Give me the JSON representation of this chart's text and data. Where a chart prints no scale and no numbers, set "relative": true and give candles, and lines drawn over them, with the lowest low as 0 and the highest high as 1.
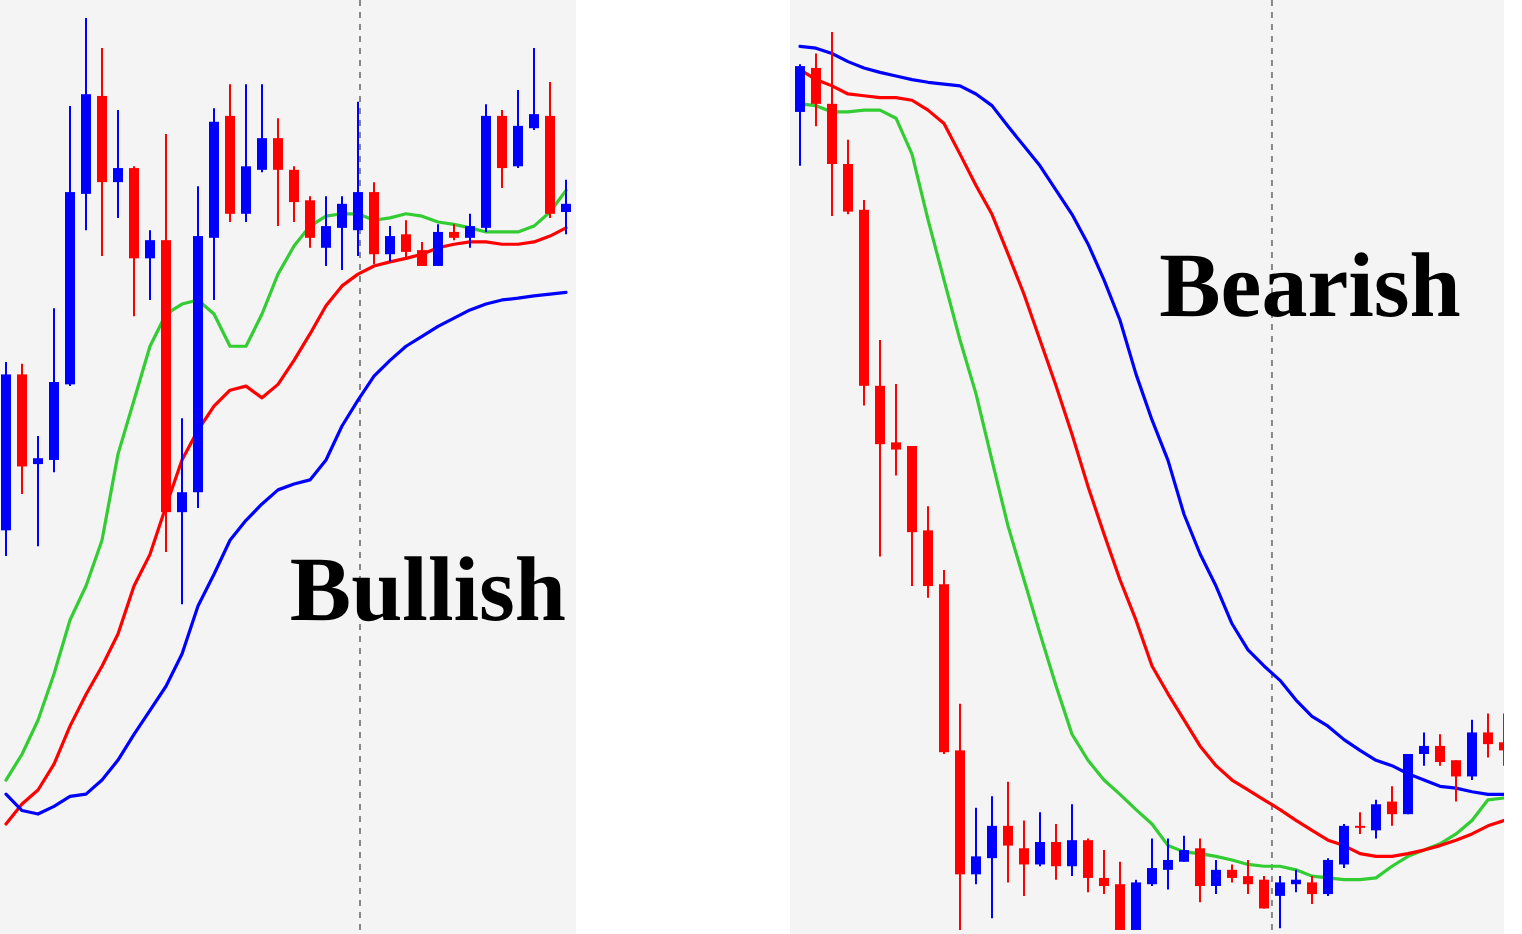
{
  "chart_data": [
    {
      "type": "candlestick",
      "relative": true,
      "annotations": [
        "Bullish"
      ],
      "categories": [
        null,
        null,
        null,
        null,
        null,
        null,
        null,
        null,
        null,
        null,
        null,
        null,
        null,
        null,
        null,
        null,
        null,
        null,
        null,
        null,
        null,
        null,
        null,
        null,
        null,
        null,
        null,
        null,
        null,
        null,
        null,
        null,
        null,
        null,
        null,
        null
      ],
      "ohlc": [
        [
          0.126,
          0.413,
          0.082,
          0.392
        ],
        [
          0.392,
          0.41,
          0.188,
          0.235
        ],
        [
          0.239,
          0.287,
          0.099,
          0.249
        ],
        [
          0.246,
          0.505,
          0.225,
          0.379
        ],
        [
          0.375,
          0.85,
          0.372,
          0.703
        ],
        [
          0.7,
          1.0,
          0.638,
          0.87
        ],
        [
          0.867,
          0.949,
          0.594,
          0.72
        ],
        [
          0.72,
          0.843,
          0.659,
          0.744
        ],
        [
          0.744,
          0.747,
          0.491,
          0.59
        ],
        [
          0.59,
          0.638,
          0.519,
          0.621
        ],
        [
          0.621,
          0.802,
          0.089,
          0.157
        ],
        [
          0.157,
          0.317,
          0,
          0.191
        ],
        [
          0.191,
          0.713,
          0.164,
          0.628
        ],
        [
          0.625,
          0.846,
          0.519,
          0.823
        ],
        [
          0.833,
          0.887,
          0.652,
          0.666
        ],
        [
          0.666,
          0.887,
          0.652,
          0.747
        ],
        [
          0.741,
          0.887,
          0.737,
          0.795
        ],
        [
          0.795,
          0.829,
          0.645,
          0.741
        ],
        [
          0.741,
          0.747,
          0.652,
          0.686
        ],
        [
          0.689,
          0.696,
          0.608,
          0.625
        ],
        [
          0.608,
          0.696,
          0.577,
          0.645
        ],
        [
          0.642,
          0.696,
          0.57,
          0.683
        ],
        [
          0.638,
          0.857,
          0.594,
          0.703
        ],
        [
          0.703,
          0.72,
          0.58,
          0.597
        ],
        [
          0.597,
          0.645,
          0.584,
          0.628
        ],
        [
          0.631,
          0.655,
          0.587,
          0.601
        ],
        [
          0.604,
          0.618,
          0.577,
          0.577
        ],
        [
          0.577,
          0.648,
          0.577,
          0.635
        ],
        [
          0.635,
          0.648,
          0.621,
          0.625
        ],
        [
          0.625,
          0.666,
          0.608,
          0.645
        ],
        [
          0.642,
          0.853,
          0.635,
          0.833
        ],
        [
          0.833,
          0.843,
          0.71,
          0.744
        ],
        [
          0.747,
          0.877,
          0.744,
          0.816
        ],
        [
          0.812,
          0.949,
          0.809,
          0.836
        ],
        [
          0.833,
          0.891,
          0.659,
          0.666
        ],
        [
          0.669,
          0.724,
          0.631,
          0.683
        ]
      ],
      "colors": [
        "#0000ff",
        "#ff0000",
        "#0000ff",
        "#0000ff",
        "#0000ff",
        "#0000ff",
        "#ff0000",
        "#0000ff",
        "#ff0000",
        "#0000ff",
        "#ff0000",
        "#0000ff",
        "#0000ff",
        "#0000ff",
        "#ff0000",
        "#0000ff",
        "#0000ff",
        "#ff0000",
        "#ff0000",
        "#ff0000",
        "#0000ff",
        "#0000ff",
        "#0000ff",
        "#ff0000",
        "#0000ff",
        "#ff0000",
        "#ff0000",
        "#0000ff",
        "#ff0000",
        "#0000ff",
        "#0000ff",
        "#ff0000",
        "#0000ff",
        "#0000ff",
        "#ff0000",
        "#0000ff"
      ],
      "series": [
        {
          "type": "line",
          "color": "#33cc33",
          "values": [
            -0.3,
            -0.256,
            -0.198,
            -0.119,
            -0.027,
            0.031,
            0.109,
            0.256,
            0.348,
            0.44,
            0.495,
            0.512,
            0.519,
            0.495,
            0.44,
            0.44,
            0.495,
            0.563,
            0.611,
            0.645,
            0.662,
            0.666,
            0.666,
            0.655,
            0.659,
            0.666,
            0.662,
            0.652,
            0.648,
            0.642,
            0.635,
            0.635,
            0.635,
            0.645,
            0.669,
            0.706
          ]
        },
        {
          "type": "line",
          "color": "#ff0000",
          "values": [
            -0.375,
            -0.341,
            -0.317,
            -0.273,
            -0.208,
            -0.154,
            -0.106,
            -0.051,
            0.031,
            0.085,
            0.167,
            0.246,
            0.297,
            0.338,
            0.365,
            0.372,
            0.352,
            0.375,
            0.416,
            0.461,
            0.509,
            0.543,
            0.563,
            0.577,
            0.584,
            0.59,
            0.597,
            0.608,
            0.614,
            0.618,
            0.618,
            0.614,
            0.614,
            0.618,
            0.628,
            0.642
          ]
        },
        {
          "type": "line",
          "color": "#0000ff",
          "values": [
            -0.324,
            -0.352,
            -0.358,
            -0.345,
            -0.328,
            -0.324,
            -0.3,
            -0.266,
            -0.222,
            -0.181,
            -0.14,
            -0.085,
            -0.003,
            0.051,
            0.109,
            0.143,
            0.171,
            0.195,
            0.205,
            0.212,
            0.246,
            0.304,
            0.348,
            0.389,
            0.416,
            0.44,
            0.457,
            0.474,
            0.488,
            0.502,
            0.512,
            0.519,
            0.522,
            0.526,
            0.529,
            0.532
          ]
        }
      ]
    },
    {
      "type": "candlestick",
      "relative": true,
      "annotations": [
        "Bearish"
      ],
      "categories": [
        null,
        null,
        null,
        null,
        null,
        null,
        null,
        null,
        null,
        null,
        null,
        null,
        null,
        null,
        null,
        null,
        null,
        null,
        null,
        null,
        null,
        null,
        null,
        null,
        null,
        null,
        null,
        null,
        null,
        null,
        null,
        null,
        null,
        null,
        null,
        null,
        null,
        null,
        null,
        null,
        null,
        null,
        null,
        null,
        null
      ],
      "ohlc": [
        [
          0.911,
          0.964,
          0.851,
          0.962
        ],
        [
          0.96,
          0.976,
          0.895,
          0.92
        ],
        [
          0.92,
          1.0,
          0.795,
          0.853
        ],
        [
          0.853,
          0.88,
          0.797,
          0.8
        ],
        [
          0.802,
          0.813,
          0.584,
          0.606
        ],
        [
          0.606,
          0.657,
          0.416,
          0.541
        ],
        [
          0.543,
          0.608,
          0.506,
          0.535
        ],
        [
          0.539,
          0.539,
          0.383,
          0.443
        ],
        [
          0.445,
          0.472,
          0.37,
          0.383
        ],
        [
          0.385,
          0.401,
          0.196,
          0.198
        ],
        [
          0.2,
          0.252,
          0,
          0.062
        ],
        [
          0.062,
          0.136,
          0.051,
          0.082
        ],
        [
          0.08,
          0.149,
          0.013,
          0.116
        ],
        [
          0.116,
          0.165,
          0.053,
          0.094
        ],
        [
          0.091,
          0.122,
          0.038,
          0.073
        ],
        [
          0.073,
          0.131,
          0.071,
          0.098
        ],
        [
          0.098,
          0.118,
          0.056,
          0.071
        ],
        [
          0.071,
          0.14,
          0.06,
          0.1
        ],
        [
          0.1,
          0.102,
          0.042,
          0.058
        ],
        [
          0.058,
          0.089,
          0.04,
          0.049
        ],
        [
          0.051,
          0.076,
          0,
          0
        ],
        [
          0,
          0.056,
          0,
          0.053
        ],
        [
          0.051,
          0.102,
          0.049,
          0.069
        ],
        [
          0.067,
          0.102,
          0.045,
          0.078
        ],
        [
          0.076,
          0.105,
          0.076,
          0.089
        ],
        [
          0.091,
          0.102,
          0.031,
          0.049
        ],
        [
          0.049,
          0.078,
          0.04,
          0.067
        ],
        [
          0.067,
          0.073,
          0.053,
          0.058
        ],
        [
          0.06,
          0.078,
          0.04,
          0.051
        ],
        [
          0.056,
          0.06,
          0.024,
          0.024
        ],
        [
          0.038,
          0.06,
          0.002,
          0.053
        ],
        [
          0.051,
          0.067,
          0.042,
          0.056
        ],
        [
          0.053,
          0.06,
          0.029,
          0.04
        ],
        [
          0.04,
          0.08,
          0.038,
          0.078
        ],
        [
          0.073,
          0.118,
          0.069,
          0.116
        ],
        [
          0.116,
          0.131,
          0.107,
          0.114
        ],
        [
          0.111,
          0.145,
          0.102,
          0.14
        ],
        [
          0.143,
          0.16,
          0.116,
          0.129
        ],
        [
          0.129,
          0.196,
          0.129,
          0.196
        ],
        [
          0.196,
          0.22,
          0.183,
          0.205
        ],
        [
          0.205,
          0.218,
          0.183,
          0.187
        ],
        [
          0.189,
          0.189,
          0.143,
          0.171
        ],
        [
          0.171,
          0.234,
          0.167,
          0.22
        ],
        [
          0.22,
          0.241,
          0.192,
          0.207
        ],
        [
          0.209,
          0.241,
          0.183,
          0.2
        ]
      ],
      "colors": [
        "#0000ff",
        "#ff0000",
        "#ff0000",
        "#ff0000",
        "#ff0000",
        "#ff0000",
        "#ff0000",
        "#ff0000",
        "#ff0000",
        "#ff0000",
        "#ff0000",
        "#0000ff",
        "#0000ff",
        "#ff0000",
        "#ff0000",
        "#0000ff",
        "#ff0000",
        "#0000ff",
        "#ff0000",
        "#ff0000",
        "#ff0000",
        "#0000ff",
        "#0000ff",
        "#0000ff",
        "#0000ff",
        "#ff0000",
        "#0000ff",
        "#ff0000",
        "#ff0000",
        "#ff0000",
        "#0000ff",
        "#0000ff",
        "#ff0000",
        "#0000ff",
        "#0000ff",
        "#ff0000",
        "#0000ff",
        "#ff0000",
        "#0000ff",
        "#0000ff",
        "#ff0000",
        "#ff0000",
        "#0000ff",
        "#ff0000",
        "#ff0000"
      ],
      "series": [
        {
          "type": "line",
          "color": "#33cc33",
          "values": [
            0.92,
            0.918,
            0.911,
            0.911,
            0.913,
            0.913,
            0.904,
            0.864,
            0.791,
            0.724,
            0.657,
            0.597,
            0.523,
            0.45,
            0.39,
            0.33,
            0.272,
            0.218,
            0.189,
            0.167,
            0.151,
            0.134,
            0.118,
            0.094,
            0.087,
            0.085,
            0.082,
            0.078,
            0.073,
            0.071,
            0.071,
            0.067,
            0.06,
            0.058,
            0.056,
            0.056,
            0.058,
            0.071,
            0.082,
            0.089,
            0.096,
            0.107,
            0.122,
            0.145,
            0.147
          ]
        },
        {
          "type": "line",
          "color": "#ff0000",
          "values": [
            0.958,
            0.947,
            0.94,
            0.931,
            0.929,
            0.927,
            0.927,
            0.924,
            0.913,
            0.898,
            0.864,
            0.829,
            0.797,
            0.753,
            0.708,
            0.657,
            0.606,
            0.552,
            0.494,
            0.441,
            0.39,
            0.345,
            0.294,
            0.263,
            0.234,
            0.205,
            0.183,
            0.167,
            0.156,
            0.145,
            0.134,
            0.122,
            0.111,
            0.1,
            0.094,
            0.085,
            0.082,
            0.082,
            0.085,
            0.089,
            0.094,
            0.1,
            0.107,
            0.116,
            0.122
          ]
        },
        {
          "type": "line",
          "color": "#0000ff",
          "values": [
            0.984,
            0.982,
            0.976,
            0.967,
            0.96,
            0.955,
            0.951,
            0.947,
            0.944,
            0.942,
            0.94,
            0.931,
            0.918,
            0.895,
            0.873,
            0.851,
            0.824,
            0.797,
            0.764,
            0.724,
            0.679,
            0.619,
            0.568,
            0.523,
            0.463,
            0.419,
            0.383,
            0.341,
            0.312,
            0.294,
            0.278,
            0.256,
            0.238,
            0.227,
            0.212,
            0.2,
            0.189,
            0.183,
            0.174,
            0.167,
            0.16,
            0.158,
            0.154,
            0.151,
            0.151
          ]
        }
      ]
    }
  ]
}
